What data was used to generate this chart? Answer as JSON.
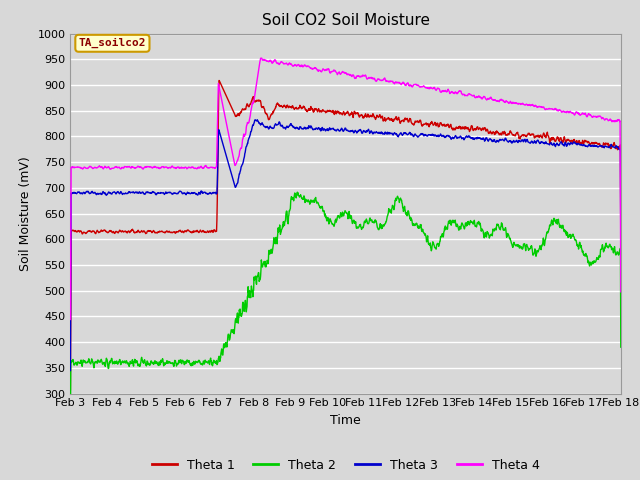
{
  "title": "Soil CO2 Soil Moisture",
  "xlabel": "Time",
  "ylabel": "Soil Moisture (mV)",
  "ylim": [
    300,
    1000
  ],
  "annotation_text": "TA_soilco2",
  "annotation_bg": "#ffffcc",
  "annotation_border": "#cc9900",
  "bg_color": "#d8d8d8",
  "colors": {
    "theta1": "#cc0000",
    "theta2": "#00cc00",
    "theta3": "#0000cc",
    "theta4": "#ff00ff"
  },
  "legend_labels": [
    "Theta 1",
    "Theta 2",
    "Theta 3",
    "Theta 4"
  ],
  "xtick_labels": [
    "Feb 3",
    "Feb 4",
    "Feb 5",
    "Feb 6",
    "Feb 7",
    "Feb 8",
    "Feb 9",
    "Feb 10",
    "Feb 11",
    "Feb 12",
    "Feb 13",
    "Feb 14",
    "Feb 15",
    "Feb 16",
    "Feb 17",
    "Feb 18"
  ]
}
